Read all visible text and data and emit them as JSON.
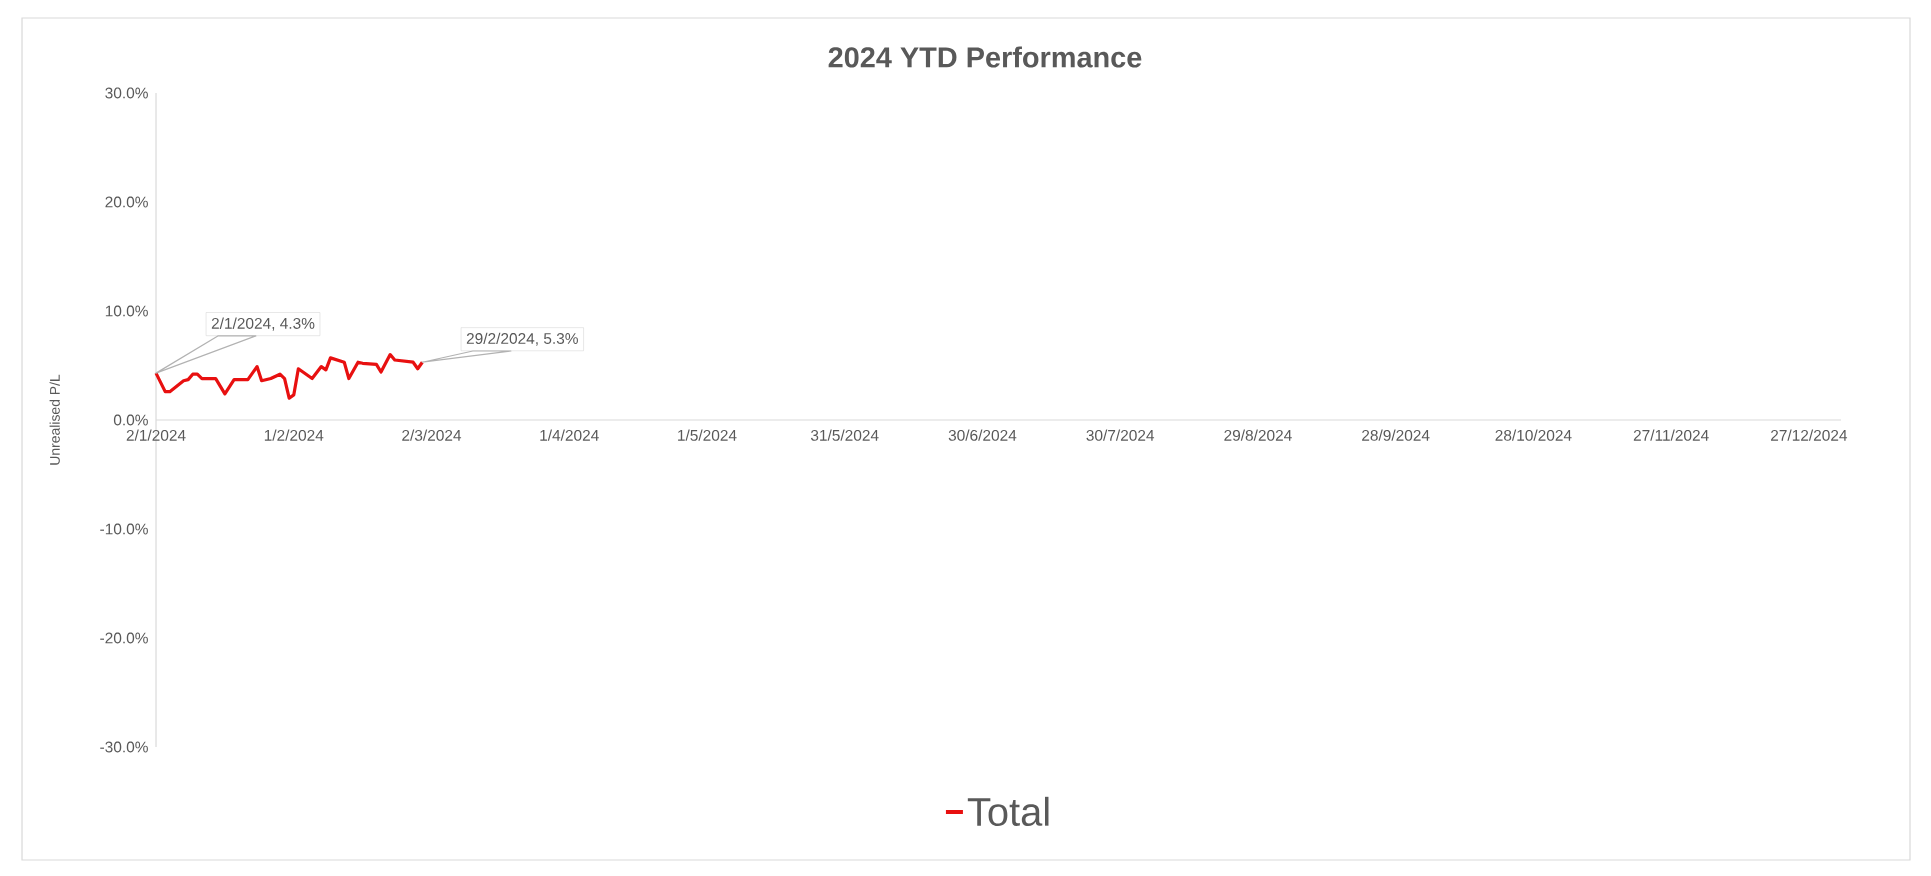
{
  "chart_data": {
    "type": "line",
    "title": "2024 YTD Performance",
    "ylabel": "Unrealised P/L",
    "x": [
      "2024-01-02",
      "2024-01-04",
      "2024-01-05",
      "2024-01-08",
      "2024-01-09",
      "2024-01-10",
      "2024-01-11",
      "2024-01-12",
      "2024-01-15",
      "2024-01-17",
      "2024-01-19",
      "2024-01-22",
      "2024-01-24",
      "2024-01-25",
      "2024-01-27",
      "2024-01-29",
      "2024-01-30",
      "2024-01-31",
      "2024-02-01",
      "2024-02-02",
      "2024-02-05",
      "2024-02-07",
      "2024-02-08",
      "2024-02-09",
      "2024-02-12",
      "2024-02-13",
      "2024-02-15",
      "2024-02-16",
      "2024-02-19",
      "2024-02-20",
      "2024-02-22",
      "2024-02-23",
      "2024-02-27",
      "2024-02-28",
      "2024-02-29"
    ],
    "series": [
      {
        "name": "Total",
        "color": "#e81010",
        "values": [
          4.3,
          2.6,
          2.6,
          3.6,
          3.7,
          4.2,
          4.2,
          3.8,
          3.8,
          2.4,
          3.7,
          3.7,
          4.9,
          3.6,
          3.8,
          4.2,
          3.8,
          2.0,
          2.3,
          4.7,
          3.8,
          4.9,
          4.6,
          5.7,
          5.3,
          3.8,
          5.3,
          5.2,
          5.1,
          4.4,
          6.0,
          5.5,
          5.3,
          4.7,
          5.3
        ]
      }
    ],
    "xlim": [
      "2024-01-02",
      "2025-01-03"
    ],
    "xticks": [
      {
        "value": "2024-01-02",
        "label": "2/1/2024"
      },
      {
        "value": "2024-02-01",
        "label": "1/2/2024"
      },
      {
        "value": "2024-03-02",
        "label": "2/3/2024"
      },
      {
        "value": "2024-04-01",
        "label": "1/4/2024"
      },
      {
        "value": "2024-05-01",
        "label": "1/5/2024"
      },
      {
        "value": "2024-05-31",
        "label": "31/5/2024"
      },
      {
        "value": "2024-06-30",
        "label": "30/6/2024"
      },
      {
        "value": "2024-07-30",
        "label": "30/7/2024"
      },
      {
        "value": "2024-08-29",
        "label": "29/8/2024"
      },
      {
        "value": "2024-09-28",
        "label": "28/9/2024"
      },
      {
        "value": "2024-10-28",
        "label": "28/10/2024"
      },
      {
        "value": "2024-11-27",
        "label": "27/11/2024"
      },
      {
        "value": "2024-12-27",
        "label": "27/12/2024"
      }
    ],
    "ylim": [
      -30,
      30
    ],
    "yticks": [
      {
        "value": -30,
        "label": "-30.0%"
      },
      {
        "value": -20,
        "label": "-20.0%"
      },
      {
        "value": -10,
        "label": "-10.0%"
      },
      {
        "value": 0,
        "label": "0.0%"
      },
      {
        "value": 10,
        "label": "10.0%"
      },
      {
        "value": 20,
        "label": "20.0%"
      },
      {
        "value": 30,
        "label": "30.0%"
      }
    ],
    "annotations": [
      {
        "text": "2/1/2024, 4.3%",
        "x": "2024-01-02",
        "y": 4.3
      },
      {
        "text": "29/2/2024, 5.3%",
        "x": "2024-02-29",
        "y": 5.3
      }
    ],
    "legend": "bottom"
  }
}
